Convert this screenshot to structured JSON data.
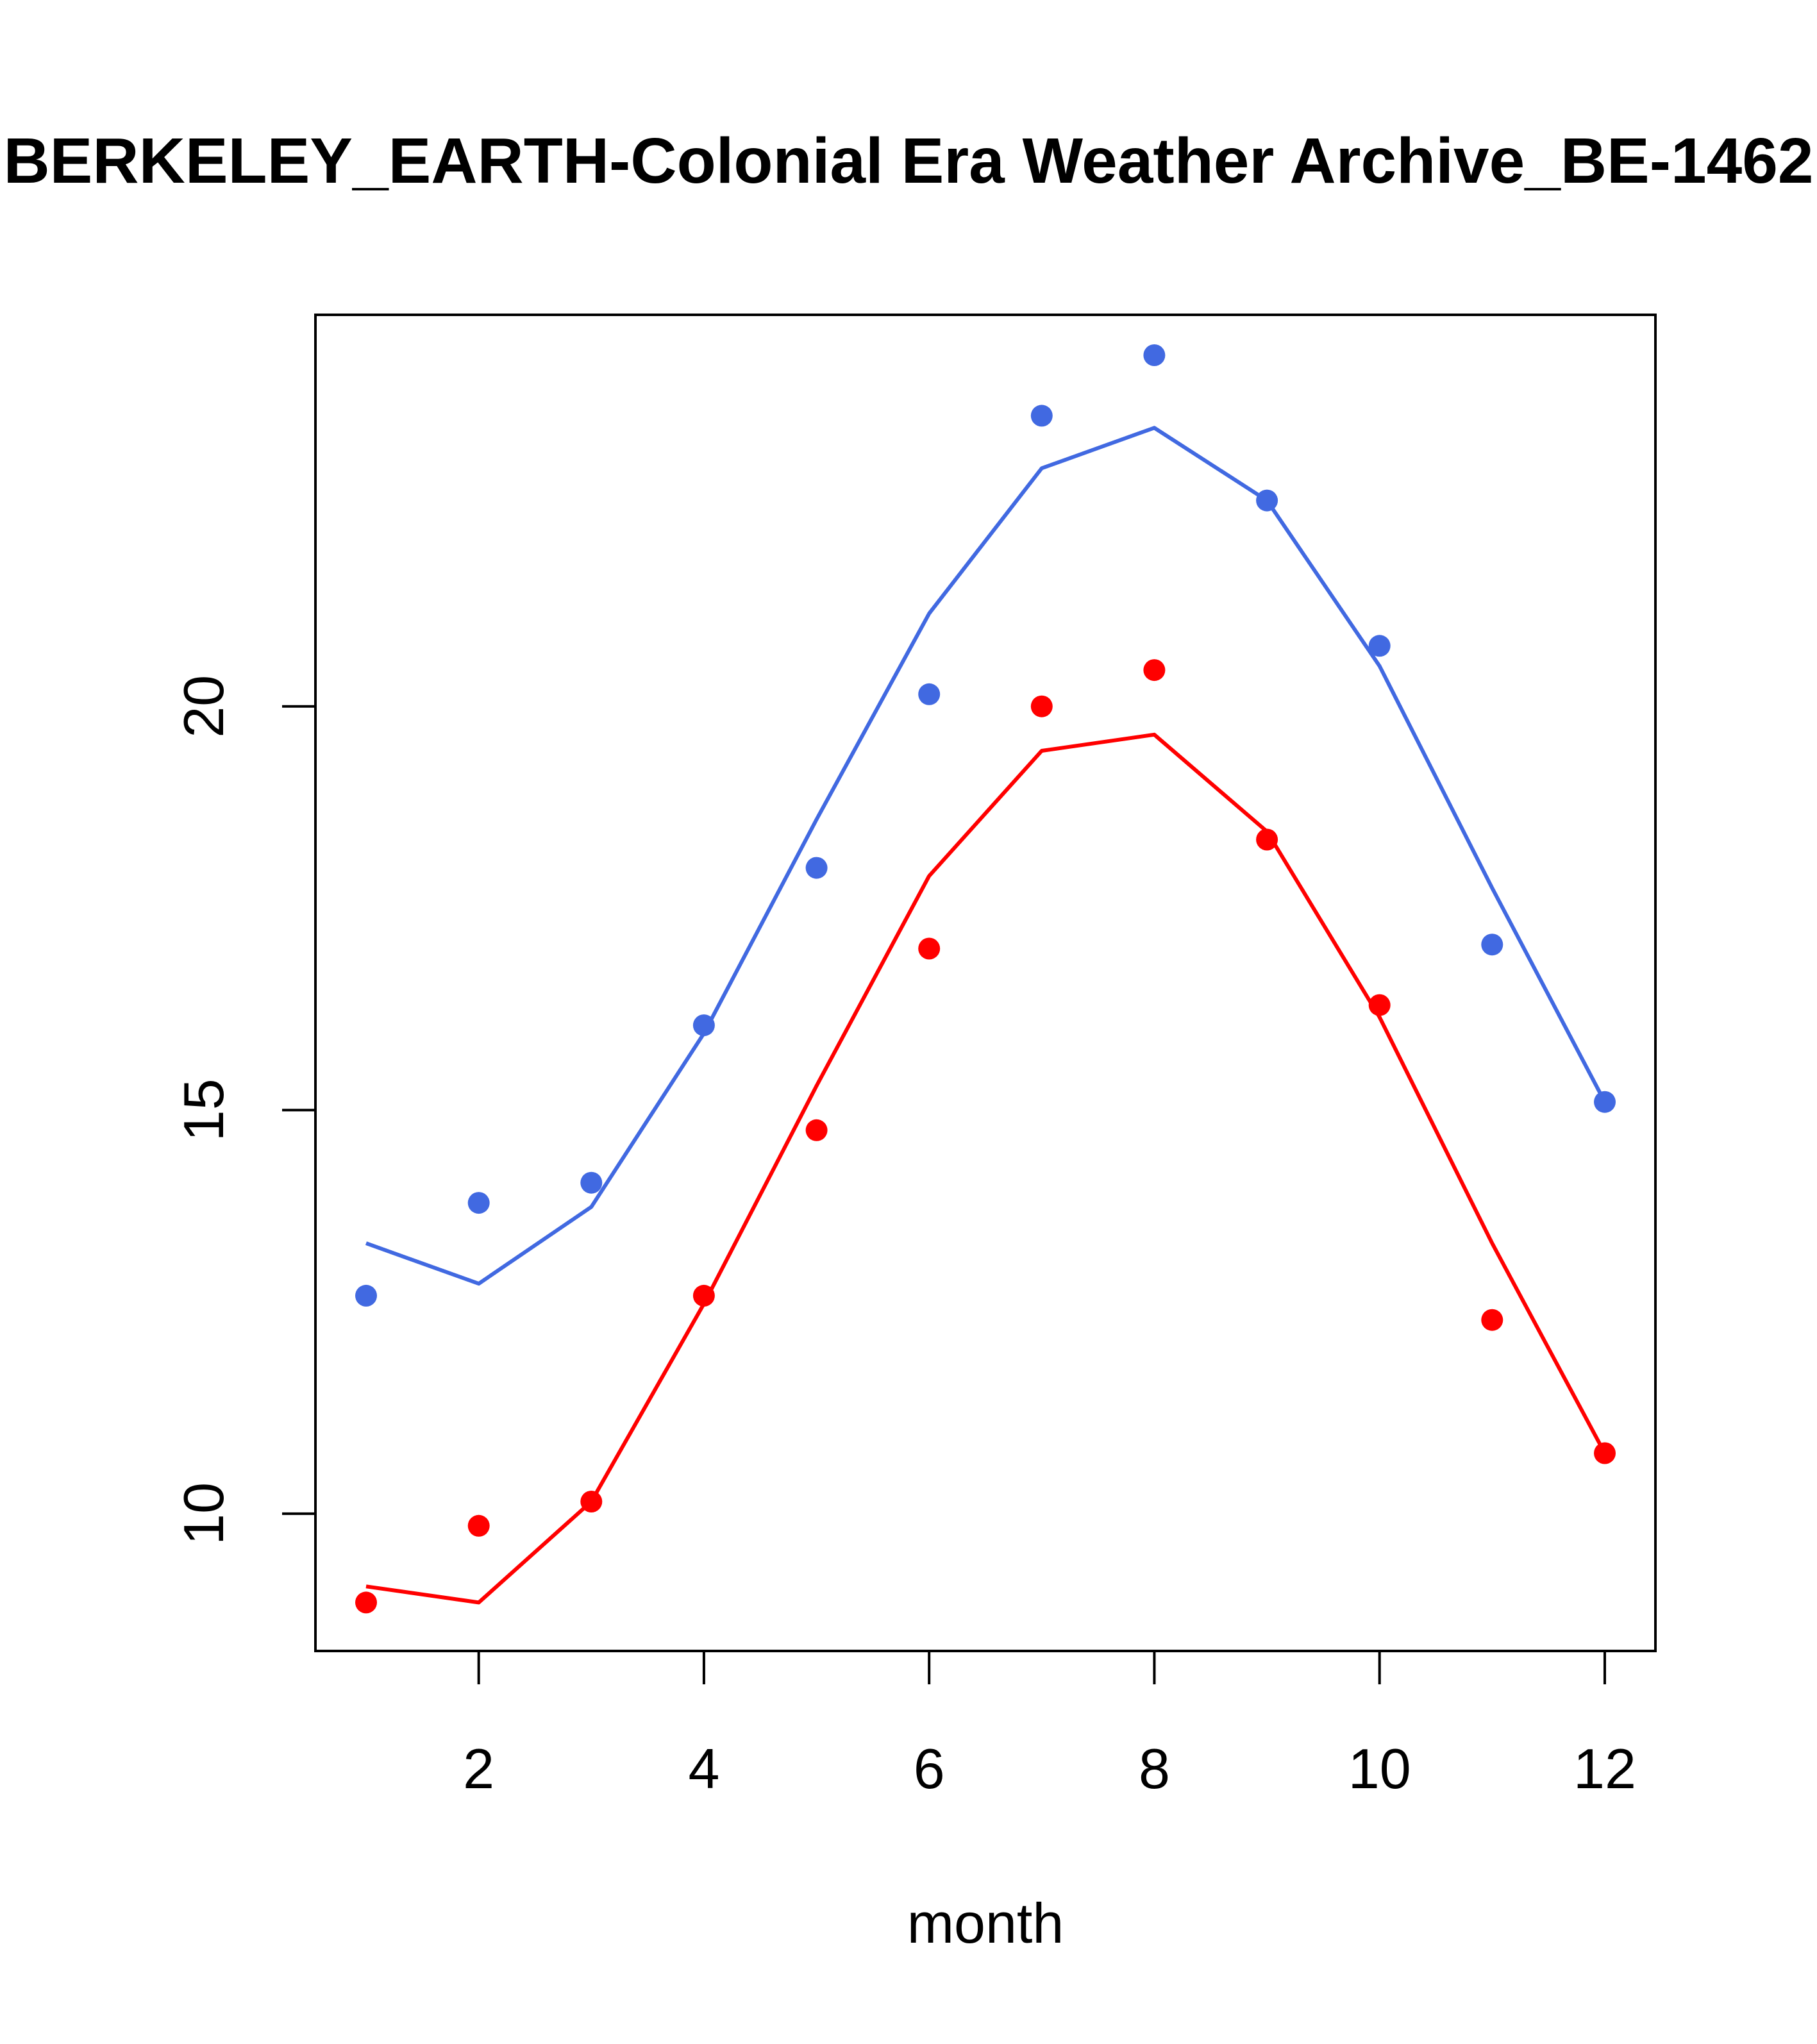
{
  "chart_data": {
    "type": "line",
    "title": "BERKELEY_EARTH-Colonial Era Weather Archive_BE-1462",
    "xlabel": "month",
    "ylabel": "",
    "xlim": [
      0.55,
      12.45
    ],
    "ylim": [
      8.3,
      24.85
    ],
    "x_ticks": [
      2,
      4,
      6,
      8,
      10,
      12
    ],
    "y_ticks": [
      10,
      15,
      20
    ],
    "grid": false,
    "legend": "none",
    "x": [
      1,
      2,
      3,
      4,
      5,
      6,
      7,
      8,
      9,
      10,
      11,
      12
    ],
    "series": [
      {
        "color": "#4169e1",
        "points": [
          12.7,
          13.85,
          14.1,
          16.05,
          18.0,
          20.15,
          23.6,
          24.35,
          22.55,
          20.75,
          17.05,
          15.1
        ],
        "line": [
          13.35,
          12.85,
          13.8,
          15.95,
          18.6,
          21.15,
          22.95,
          23.45,
          22.55,
          20.5,
          17.75,
          15.1
        ]
      },
      {
        "color": "#ff0000",
        "points": [
          8.9,
          9.85,
          10.15,
          12.7,
          14.75,
          17.0,
          20.0,
          20.45,
          18.35,
          16.3,
          12.4,
          10.75
        ],
        "line": [
          9.1,
          8.9,
          10.15,
          12.6,
          15.3,
          17.9,
          19.45,
          19.65,
          18.45,
          16.15,
          13.35,
          10.75
        ]
      }
    ]
  }
}
